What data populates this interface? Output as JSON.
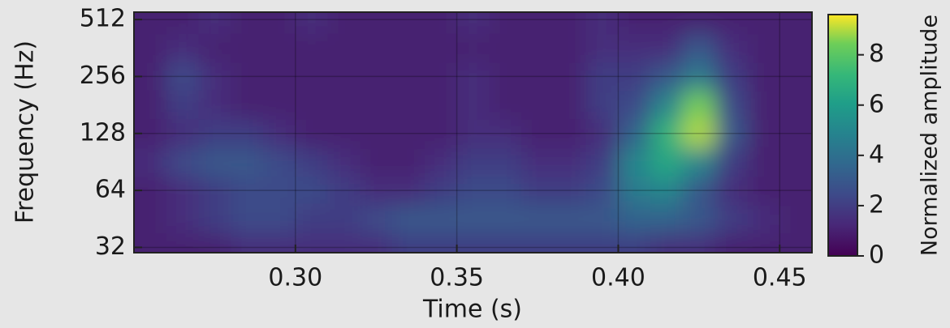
{
  "chart_data": {
    "type": "heatmap",
    "x_label": "Time (s)",
    "y_label": "Frequency (Hz)",
    "colorbar_label": "Normalized amplitude",
    "xlim": [
      0.25,
      0.46
    ],
    "xticks": [
      {
        "value": 0.3,
        "label": "0.30"
      },
      {
        "value": 0.35,
        "label": "0.35"
      },
      {
        "value": 0.4,
        "label": "0.40"
      },
      {
        "value": 0.45,
        "label": "0.45"
      }
    ],
    "ylim": [
      30,
      560
    ],
    "log_y": true,
    "yticks": [
      32,
      64,
      128,
      256,
      512
    ],
    "grid": true,
    "colormap": "viridis",
    "clim": [
      0,
      9.6
    ],
    "colorbar_ticks": [
      0,
      2,
      4,
      6,
      8
    ],
    "x": [
      0.255,
      0.265,
      0.275,
      0.285,
      0.295,
      0.305,
      0.315,
      0.325,
      0.335,
      0.345,
      0.355,
      0.365,
      0.375,
      0.385,
      0.395,
      0.405,
      0.415,
      0.425,
      0.435,
      0.445,
      0.455
    ],
    "y": [
      32,
      45,
      64,
      90,
      128,
      181,
      256,
      362,
      512
    ],
    "z": [
      [
        1,
        1,
        1,
        1.5,
        1.5,
        1.5,
        1.5,
        1.5,
        2,
        2,
        2,
        2,
        2,
        2,
        2,
        2,
        1.5,
        1.5,
        1,
        1,
        1
      ],
      [
        1,
        1.5,
        2,
        2.5,
        2.5,
        2,
        2,
        2.5,
        3,
        3,
        3,
        3,
        3,
        3,
        3,
        3.5,
        3.5,
        3,
        2,
        1.5,
        1
      ],
      [
        1,
        1.5,
        2,
        2.5,
        2.5,
        2.5,
        2,
        1.5,
        1.5,
        2,
        2.5,
        2.5,
        2,
        2,
        2.5,
        4.5,
        5,
        3,
        1.5,
        1,
        1
      ],
      [
        1.5,
        2.5,
        3,
        3,
        2.5,
        2,
        1.5,
        1,
        1,
        1.5,
        2,
        2,
        1.5,
        1.5,
        2,
        5,
        6.5,
        5,
        2,
        1,
        1
      ],
      [
        1,
        1.5,
        2,
        2,
        1.5,
        1,
        1,
        1,
        1,
        1,
        1.5,
        1.5,
        1,
        1,
        1.5,
        3.5,
        7,
        9,
        3,
        1,
        1
      ],
      [
        1,
        2,
        1.5,
        1,
        1,
        1,
        1,
        1,
        1,
        1,
        1.5,
        1,
        1,
        1,
        2,
        2.5,
        5,
        8.5,
        2.5,
        1,
        1
      ],
      [
        1,
        2.5,
        1.5,
        1,
        1,
        1,
        1,
        1,
        1,
        1,
        1.5,
        1,
        1,
        1,
        2,
        2,
        3,
        4.5,
        2,
        1,
        1
      ],
      [
        1,
        1.5,
        1,
        1,
        1,
        1,
        1,
        1,
        1,
        1,
        1,
        1,
        1,
        1,
        1.5,
        1.5,
        1.5,
        3,
        1.5,
        1,
        1
      ],
      [
        1,
        1,
        1.5,
        1,
        1,
        1.5,
        1,
        1,
        1,
        1,
        1.5,
        1,
        1,
        1,
        1.5,
        1,
        1,
        1,
        1,
        1,
        1
      ]
    ]
  }
}
